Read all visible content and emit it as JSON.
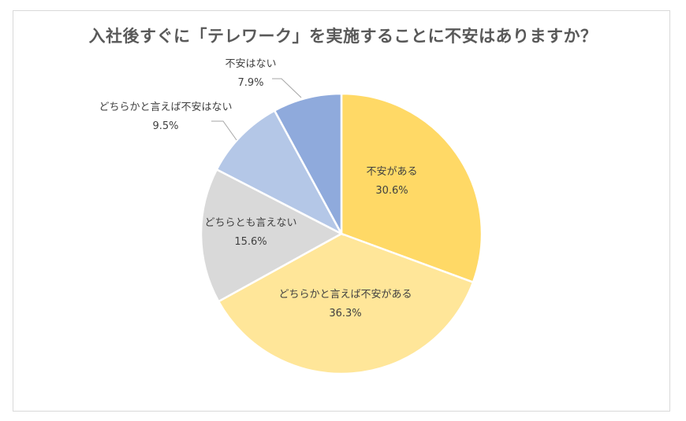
{
  "chart_data": {
    "type": "pie",
    "title": "入社後すぐに「テレワーク」を実施することに不安はありますか？",
    "slices": [
      {
        "label": "不安がある",
        "value": 30.6,
        "value_label": "30.6%",
        "color": "#FFD966"
      },
      {
        "label": "どちらかと言えば不安がある",
        "value": 36.3,
        "value_label": "36.3%",
        "color": "#FFE699"
      },
      {
        "label": "どちらとも言えない",
        "value": 15.6,
        "value_label": "15.6%",
        "color": "#D9D9D9"
      },
      {
        "label": "どちらかと言えば不安はない",
        "value": 9.5,
        "value_label": "9.5%",
        "color": "#B4C7E7"
      },
      {
        "label": "不安はない",
        "value": 7.9,
        "value_label": "7.9%",
        "color": "#8FAADC"
      }
    ],
    "start_angle_deg": 0,
    "direction": "clockwise",
    "legend": "none"
  }
}
